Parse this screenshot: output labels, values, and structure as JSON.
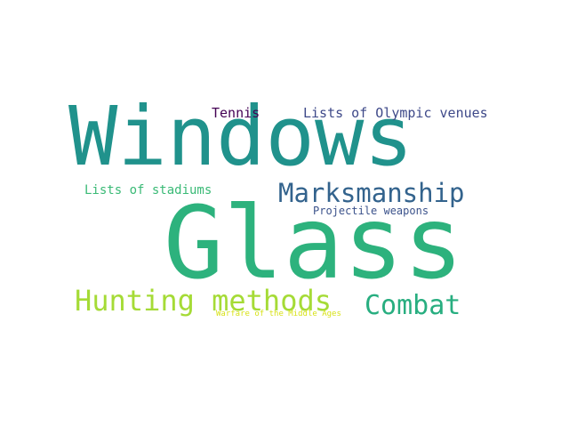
{
  "words": [
    {
      "text": "Windows",
      "color": "#20928c"
    },
    {
      "text": "Glass",
      "color": "#2db27d"
    },
    {
      "text": "Marksmanship",
      "color": "#33638d"
    },
    {
      "text": "Hunting methods",
      "color": "#a5db36"
    },
    {
      "text": "Combat",
      "color": "#28ae80"
    },
    {
      "text": "Tennis",
      "color": "#440154"
    },
    {
      "text": "Lists of Olympic venues",
      "color": "#3e4989"
    },
    {
      "text": "Lists of stadiums",
      "color": "#3aba76"
    },
    {
      "text": "Projectile weapons",
      "color": "#3b528b"
    },
    {
      "text": "Warfare of the Middle Ages",
      "color": "#d8e219"
    }
  ]
}
